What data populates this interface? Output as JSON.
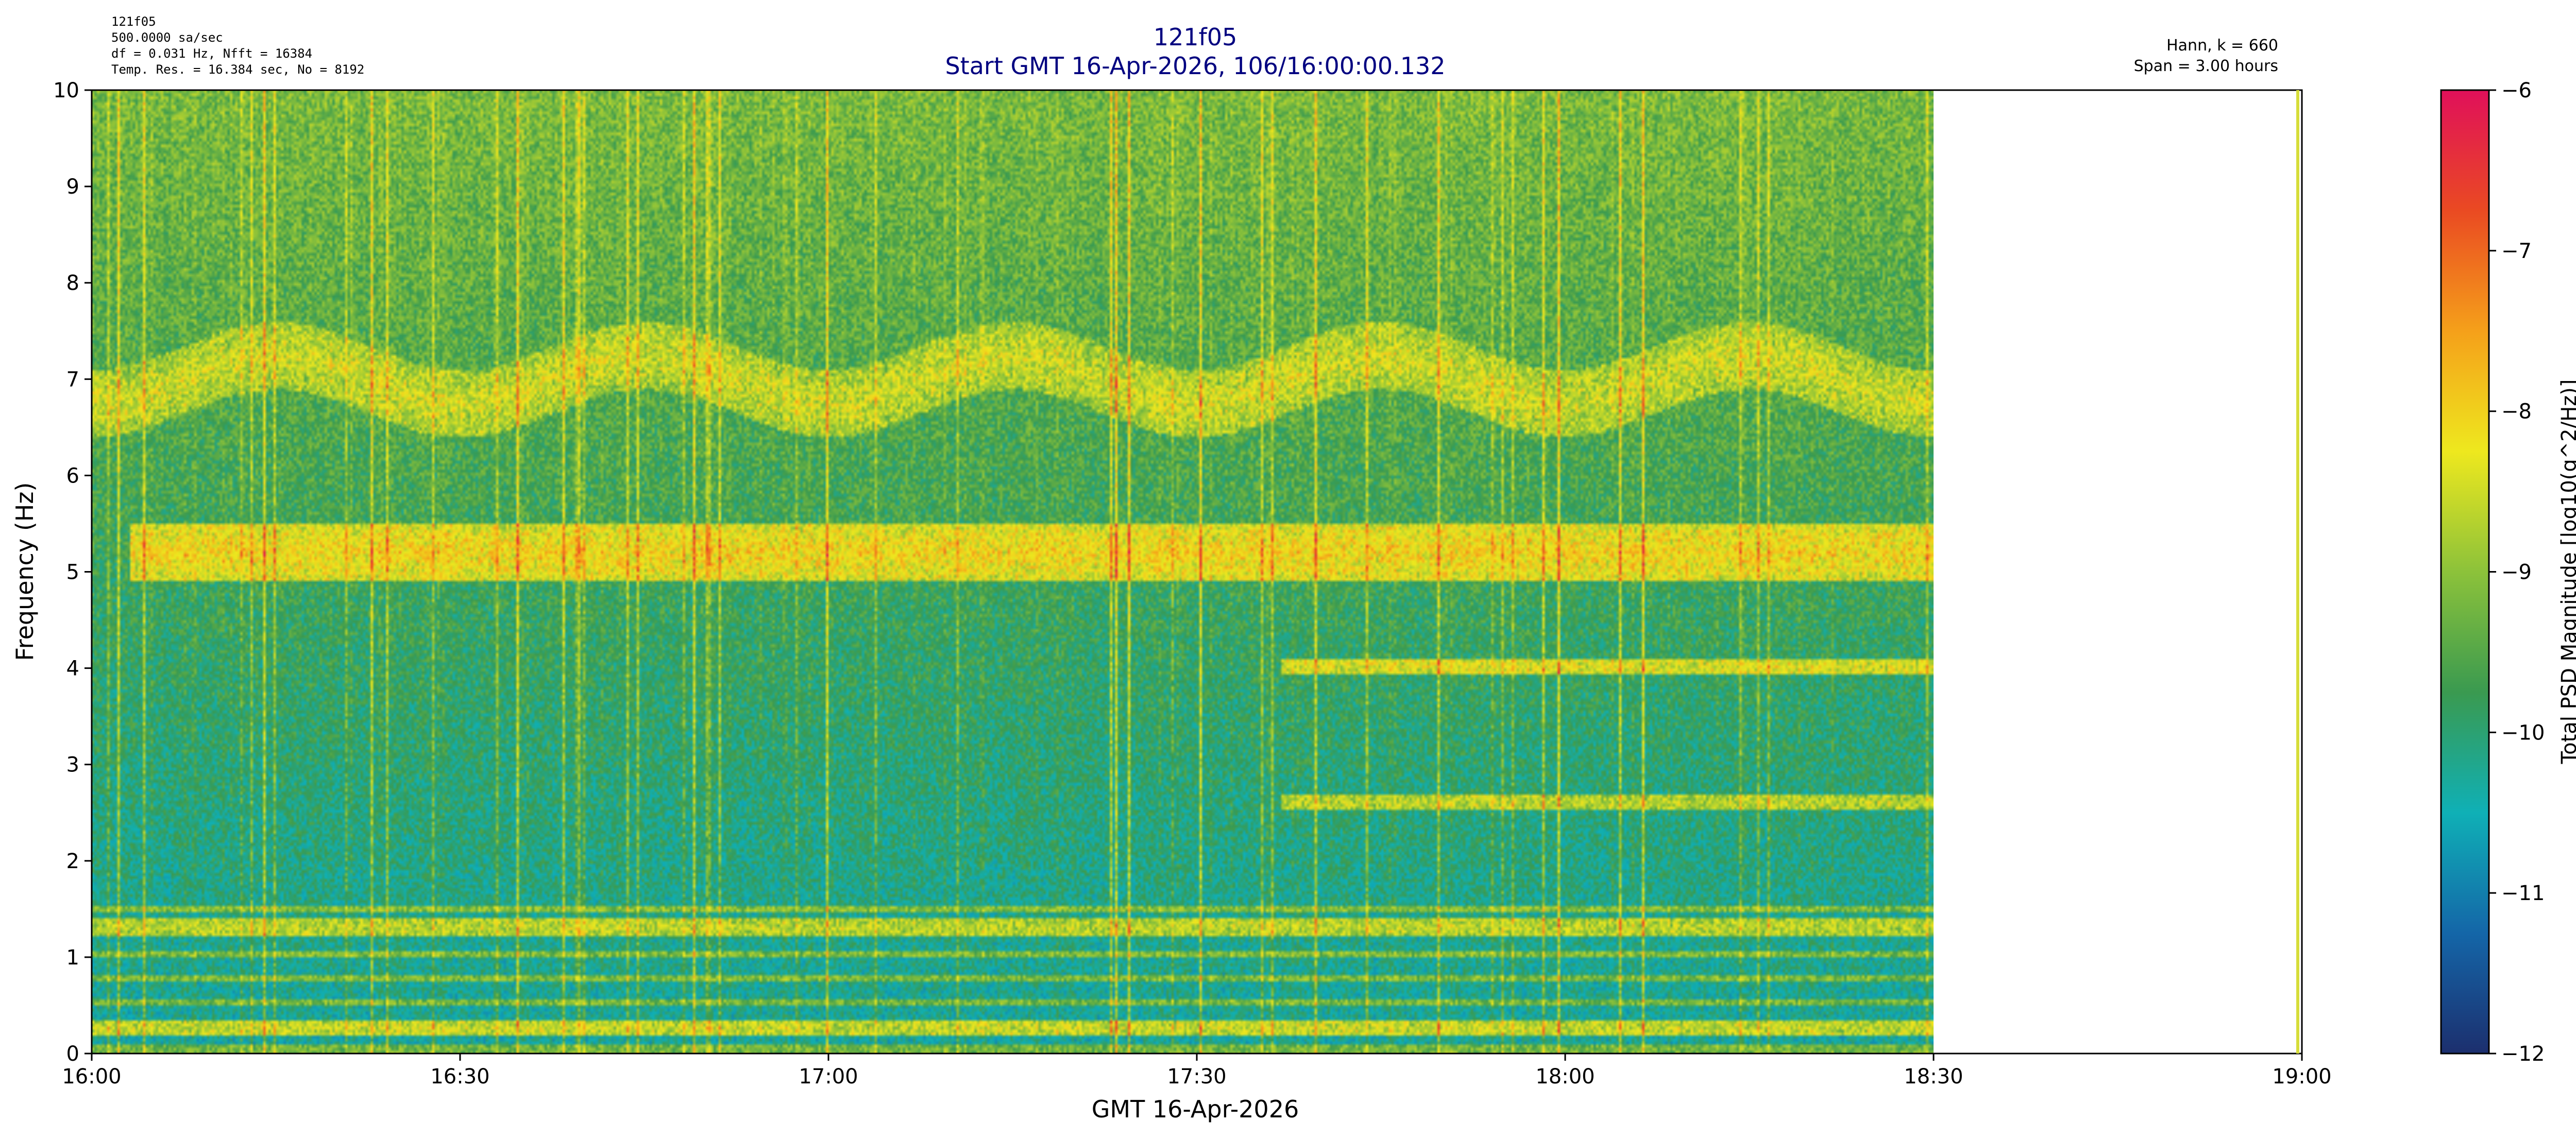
{
  "header": {
    "title": "121f05",
    "subtitle": "Start GMT 16-Apr-2026, 106/16:00:00.132",
    "info_left": [
      "121f05",
      "500.0000 sa/sec",
      "df = 0.031 Hz,  Nfft = 16384",
      "Temp. Res. = 16.384 sec, No = 8192"
    ],
    "info_right": [
      "Hann, k = 660",
      "Span = 3.00 hours"
    ],
    "title_color": "#000080"
  },
  "chart_data": {
    "type": "heatmap",
    "xlabel": "GMT 16-Apr-2026",
    "ylabel": "Frequency (Hz)",
    "x_ticks": [
      "16:00",
      "16:30",
      "17:00",
      "17:30",
      "18:00",
      "18:30",
      "19:00"
    ],
    "x_range_minutes": [
      0,
      180
    ],
    "data_end_minutes": 150,
    "y_ticks": [
      "0",
      "1",
      "2",
      "3",
      "4",
      "5",
      "6",
      "7",
      "8",
      "9",
      "10"
    ],
    "ylim": [
      0,
      10
    ],
    "colorbar": {
      "label": "Total PSD Magnitude [log10(g^2/Hz)]",
      "ticks": [
        "−6",
        "−7",
        "−8",
        "−9",
        "−10",
        "−11",
        "−12"
      ],
      "range": [
        -12,
        -6
      ],
      "colors": [
        "#1c2f6e",
        "#1466a8",
        "#0fb0b6",
        "#3a9a50",
        "#8cc23a",
        "#eee81e",
        "#f5a01a",
        "#ea4a22",
        "#e0105a"
      ]
    },
    "features": [
      {
        "label": "band",
        "freq_hz": 7.0,
        "start_min": 0,
        "end_min": 150,
        "level": -8.4
      },
      {
        "label": "band",
        "freq_hz": 5.2,
        "start_min": 3,
        "end_min": 150,
        "level": -8.0
      },
      {
        "label": "band",
        "freq_hz": 1.3,
        "start_min": 0,
        "end_min": 150,
        "level": -8.6
      },
      {
        "label": "band",
        "freq_hz": 0.25,
        "start_min": 0,
        "end_min": 150,
        "level": -8.5
      },
      {
        "label": "band",
        "freq_hz": 4.0,
        "start_min": 97,
        "end_min": 150,
        "level": -8.3
      },
      {
        "label": "band",
        "freq_hz": 2.6,
        "start_min": 97,
        "end_min": 150,
        "level": -8.6
      }
    ]
  }
}
